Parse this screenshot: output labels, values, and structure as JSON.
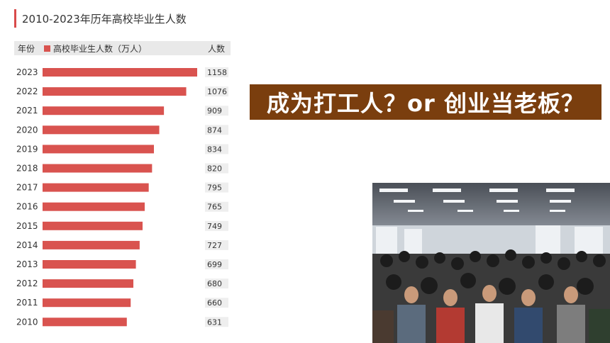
{
  "banner": {
    "text": "成为打工人？or  创业当老板？"
  },
  "colors": {
    "bar": "#d9534f",
    "accent": "#d94b4b",
    "banner_bg": "#7a3e0e"
  },
  "photo": {
    "icon": "job-fair-crowd-photo"
  },
  "chart_data": {
    "type": "bar",
    "orientation": "horizontal",
    "title": "2010-2023年历年高校毕业生人数",
    "category_header": "年份",
    "series_name": "高校毕业生人数（万人）",
    "value_header": "人数",
    "categories": [
      "2023",
      "2022",
      "2021",
      "2020",
      "2019",
      "2018",
      "2017",
      "2016",
      "2015",
      "2014",
      "2013",
      "2012",
      "2011",
      "2010"
    ],
    "values": [
      1158,
      1076,
      909,
      874,
      834,
      820,
      795,
      765,
      749,
      727,
      699,
      680,
      660,
      631
    ],
    "xlim": [
      0,
      1158
    ],
    "grid": false,
    "legend": "top"
  }
}
